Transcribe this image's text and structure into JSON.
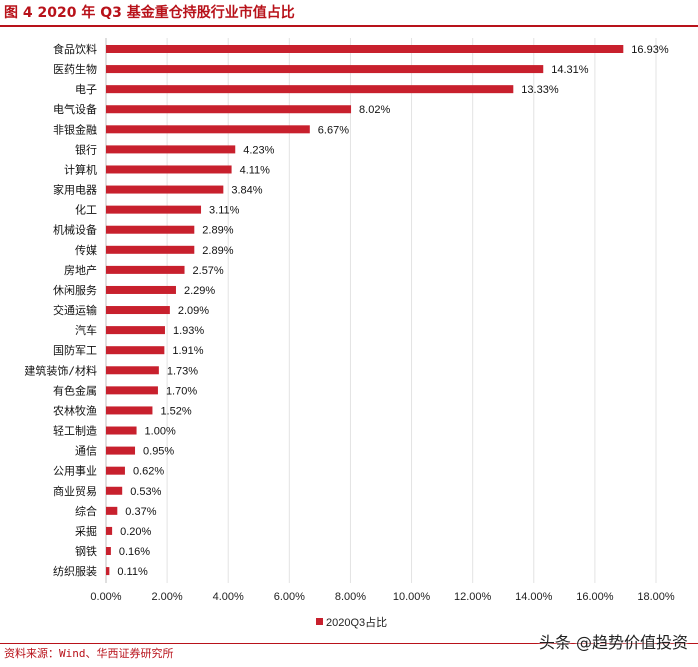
{
  "header": {
    "title": "图 4 2020 年 Q3 基金重仓持股行业市值占比"
  },
  "footer": {
    "source": "资料来源：Wind、华西证券研究所",
    "watermark": "头条 @趋势价值投资"
  },
  "chart_data": {
    "type": "bar",
    "orientation": "horizontal",
    "title": "",
    "xlabel": "",
    "ylabel": "",
    "xlim": [
      0,
      18
    ],
    "x_ticks": [
      0,
      2,
      4,
      6,
      8,
      10,
      12,
      14,
      16,
      18
    ],
    "x_tick_labels": [
      "0.00%",
      "2.00%",
      "4.00%",
      "6.00%",
      "8.00%",
      "10.00%",
      "12.00%",
      "14.00%",
      "16.00%",
      "18.00%"
    ],
    "grid": true,
    "legend": "bottom",
    "bar_color": "#c8202d",
    "categories": [
      "食品饮料",
      "医药生物",
      "电子",
      "电气设备",
      "非银金融",
      "银行",
      "计算机",
      "家用电器",
      "化工",
      "机械设备",
      "传媒",
      "房地产",
      "休闲服务",
      "交通运输",
      "汽车",
      "国防军工",
      "建筑装饰/材料",
      "有色金属",
      "农林牧渔",
      "轻工制造",
      "通信",
      "公用事业",
      "商业贸易",
      "综合",
      "采掘",
      "钢铁",
      "纺织服装"
    ],
    "series": [
      {
        "name": "2020Q3占比",
        "values": [
          16.93,
          14.31,
          13.33,
          8.02,
          6.67,
          4.23,
          4.11,
          3.84,
          3.11,
          2.89,
          2.89,
          2.57,
          2.29,
          2.09,
          1.93,
          1.91,
          1.73,
          1.7,
          1.52,
          1.0,
          0.95,
          0.62,
          0.53,
          0.37,
          0.2,
          0.16,
          0.11
        ],
        "labels": [
          "16.93%",
          "14.31%",
          "13.33%",
          "8.02%",
          "6.67%",
          "4.23%",
          "4.11%",
          "3.84%",
          "3.11%",
          "2.89%",
          "2.89%",
          "2.57%",
          "2.29%",
          "2.09%",
          "1.93%",
          "1.91%",
          "1.73%",
          "1.70%",
          "1.52%",
          "1.00%",
          "0.95%",
          "0.62%",
          "0.53%",
          "0.37%",
          "0.20%",
          "0.16%",
          "0.11%"
        ]
      }
    ]
  }
}
